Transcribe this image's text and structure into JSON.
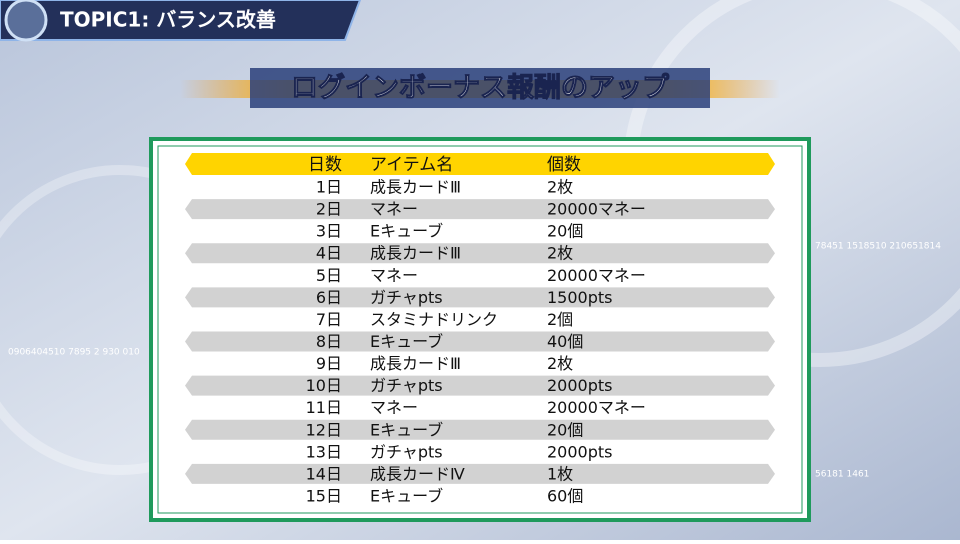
{
  "header": {
    "topic": "TOPIC1: バランス改善",
    "title": "ログインボーナス報酬のアップ"
  },
  "background": {
    "texts": [
      "78451  1518510  210651814",
      "0906404510   7895 2   930 010",
      "56181 1461"
    ]
  },
  "table": {
    "columns": [
      "日数",
      "アイテム名",
      "個数"
    ],
    "rows": [
      [
        "1日",
        "成長カードⅢ",
        "2枚"
      ],
      [
        "2日",
        "マネー",
        "20000マネー"
      ],
      [
        "3日",
        "Eキューブ",
        "20個"
      ],
      [
        "4日",
        "成長カードⅢ",
        "2枚"
      ],
      [
        "5日",
        "マネー",
        "20000マネー"
      ],
      [
        "6日",
        "ガチャpts",
        "1500pts"
      ],
      [
        "7日",
        "スタミナドリンク",
        "2個"
      ],
      [
        "8日",
        "Eキューブ",
        "40個"
      ],
      [
        "9日",
        "成長カードⅢ",
        "2枚"
      ],
      [
        "10日",
        "ガチャpts",
        "2000pts"
      ],
      [
        "11日",
        "マネー",
        "20000マネー"
      ],
      [
        "12日",
        "Eキューブ",
        "20個"
      ],
      [
        "13日",
        "ガチャpts",
        "2000pts"
      ],
      [
        "14日",
        "成長カードⅣ",
        "1枚"
      ],
      [
        "15日",
        "Eキューブ",
        "60個"
      ]
    ]
  }
}
